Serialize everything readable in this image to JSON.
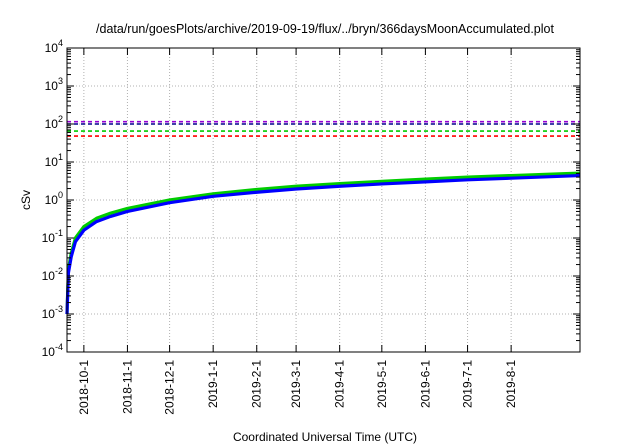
{
  "chart_data": {
    "type": "line",
    "title": "/data/run/goesPlots/archive/2019-09-19/flux/../bryn/366daysMoonAccumulated.plot",
    "xlabel": "Coordinated Universal Time (UTC)",
    "ylabel": "cSv",
    "y_scale": "log",
    "ylim": [
      0.0001,
      10000
    ],
    "y_ticks": [
      {
        "value": 0.0001,
        "base": "10",
        "exp": "-4"
      },
      {
        "value": 0.001,
        "base": "10",
        "exp": "-3"
      },
      {
        "value": 0.01,
        "base": "10",
        "exp": "-2"
      },
      {
        "value": 0.1,
        "base": "10",
        "exp": "-1"
      },
      {
        "value": 1,
        "base": "10",
        "exp": "0"
      },
      {
        "value": 10,
        "base": "10",
        "exp": "1"
      },
      {
        "value": 100,
        "base": "10",
        "exp": "2"
      },
      {
        "value": 1000,
        "base": "10",
        "exp": "3"
      },
      {
        "value": 10000,
        "base": "10",
        "exp": "4"
      }
    ],
    "xlim": [
      "2018-09-19",
      "2019-09-19"
    ],
    "x_ticks": [
      "2018-10-1",
      "2018-11-1",
      "2018-12-1",
      "2019-1-1",
      "2019-2-1",
      "2019-3-1",
      "2019-4-1",
      "2019-5-1",
      "2019-6-1",
      "2019-7-1",
      "2019-8-1"
    ],
    "grid": true,
    "series": [
      {
        "color": "#00cc00",
        "style": "solid",
        "x": [
          "2018-09-19",
          "2018-09-20",
          "2018-09-22",
          "2018-09-25",
          "2018-10-01",
          "2018-10-10",
          "2018-10-20",
          "2018-11-01",
          "2018-12-01",
          "2019-01-01",
          "2019-02-01",
          "2019-03-01",
          "2019-04-01",
          "2019-05-01",
          "2019-06-01",
          "2019-07-01",
          "2019-08-01",
          "2019-09-19"
        ],
        "y": [
          0.001,
          0.015,
          0.04,
          0.1,
          0.2,
          0.33,
          0.45,
          0.6,
          1.0,
          1.45,
          1.9,
          2.3,
          2.7,
          3.1,
          3.55,
          4.0,
          4.4,
          5.1
        ]
      },
      {
        "color": "#0000ff",
        "style": "solid",
        "x": [
          "2018-09-19",
          "2018-09-20",
          "2018-09-22",
          "2018-09-25",
          "2018-10-01",
          "2018-10-10",
          "2018-10-20",
          "2018-11-01",
          "2018-12-01",
          "2019-01-01",
          "2019-02-01",
          "2019-03-01",
          "2019-04-01",
          "2019-05-01",
          "2019-06-01",
          "2019-07-01",
          "2019-08-01",
          "2019-09-19"
        ],
        "y": [
          0.001,
          0.012,
          0.032,
          0.08,
          0.16,
          0.27,
          0.37,
          0.5,
          0.85,
          1.25,
          1.6,
          1.95,
          2.3,
          2.65,
          3.0,
          3.4,
          3.75,
          4.4
        ]
      },
      {
        "color": "#9400d3",
        "style": "dashed",
        "x": [
          "2018-09-19",
          "2019-09-19"
        ],
        "y": [
          115,
          115
        ]
      },
      {
        "color": "#00008b",
        "style": "dashed",
        "x": [
          "2018-09-19",
          "2019-09-19"
        ],
        "y": [
          100,
          100
        ]
      },
      {
        "color": "#00cc00",
        "style": "dashed",
        "x": [
          "2018-09-19",
          "2019-09-19"
        ],
        "y": [
          65,
          65
        ]
      },
      {
        "color": "#ff0000",
        "style": "dashed",
        "x": [
          "2018-09-19",
          "2019-09-19"
        ],
        "y": [
          48,
          48
        ]
      }
    ]
  }
}
